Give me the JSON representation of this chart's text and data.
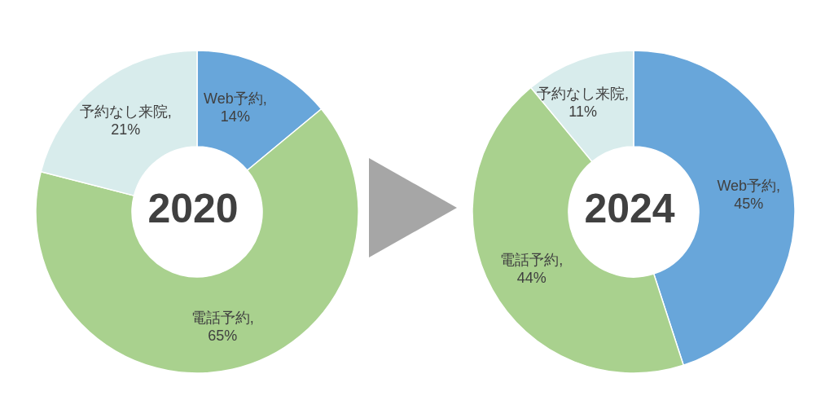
{
  "chart_data": [
    {
      "type": "donut",
      "title": "2020",
      "categories": [
        "Web予約",
        "電話予約",
        "予約なし来院"
      ],
      "values": [
        14,
        65,
        21
      ],
      "colors": [
        "#68a6da",
        "#a9d18e",
        "#d8ecec"
      ],
      "value_labels": [
        ", 14%",
        ", 65%",
        ", 21%"
      ]
    },
    {
      "type": "donut",
      "title": "2024",
      "categories": [
        "Web予約",
        "電話予約",
        "予約なし来院"
      ],
      "values": [
        45,
        44,
        11
      ],
      "colors": [
        "#68a6da",
        "#a9d18e",
        "#d8ecec"
      ],
      "value_labels": [
        ", 45%",
        ", 44%",
        ", 11%"
      ]
    }
  ]
}
